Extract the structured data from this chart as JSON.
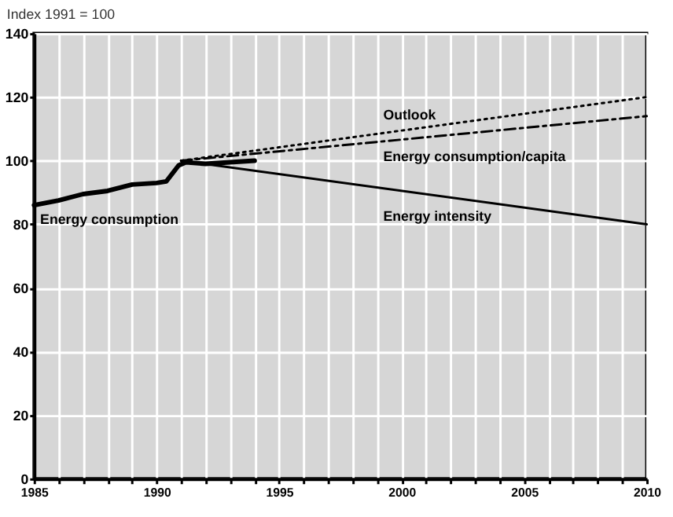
{
  "chart_data": {
    "type": "line",
    "ylabel": "Index 1991 = 100",
    "xlim": [
      1985,
      2010
    ],
    "xticks": [
      1985,
      {
        "value": 1986,
        "label": null
      },
      {
        "value": 1987,
        "label": null
      },
      {
        "value": 1988,
        "label": null
      },
      {
        "value": 1989,
        "label": null
      },
      1990,
      {
        "value": 1991,
        "label": null
      },
      {
        "value": 1992,
        "label": null
      },
      {
        "value": 1993,
        "label": null
      },
      {
        "value": 1994,
        "label": null
      },
      1995,
      {
        "value": 1996,
        "label": null
      },
      {
        "value": 1997,
        "label": null
      },
      {
        "value": 1998,
        "label": null
      },
      {
        "value": 1999,
        "label": null
      },
      2000,
      {
        "value": 2001,
        "label": null
      },
      {
        "value": 2002,
        "label": null
      },
      {
        "value": 2003,
        "label": null
      },
      {
        "value": 2004,
        "label": null
      },
      2005,
      {
        "value": 2006,
        "label": null
      },
      {
        "value": 2007,
        "label": null
      },
      {
        "value": 2008,
        "label": null
      },
      {
        "value": 2009,
        "label": null
      },
      2010
    ],
    "ylim": [
      0,
      140
    ],
    "yticks": [
      0,
      20,
      40,
      60,
      80,
      100,
      120,
      140
    ],
    "grid": true,
    "legend": false,
    "marker": "none",
    "series": [
      {
        "name": "Energy consumption",
        "color": "#000000",
        "line_style": "solid",
        "x": [
          1985,
          1986,
          1987,
          1988,
          1989,
          1990,
          1990.4,
          1990.9,
          1991.2,
          1992,
          1993,
          1994
        ],
        "values": [
          86,
          87.5,
          89.5,
          90.5,
          92.5,
          93,
          93.5,
          98.5,
          99.5,
          99,
          99.5,
          100
        ]
      },
      {
        "name": "Energy intensity",
        "color": "#000000",
        "line_style": "solid",
        "x": [
          1991,
          2010
        ],
        "values": [
          100,
          80
        ]
      },
      {
        "name": "Outlook",
        "color": "#000000",
        "line_style": "dotted",
        "x": [
          1991,
          2010
        ],
        "values": [
          100,
          120
        ]
      },
      {
        "name": "Energy consumption/capita",
        "color": "#000000",
        "line_style": "dashed",
        "x": [
          1991,
          2010
        ],
        "values": [
          100,
          114
        ]
      }
    ]
  }
}
